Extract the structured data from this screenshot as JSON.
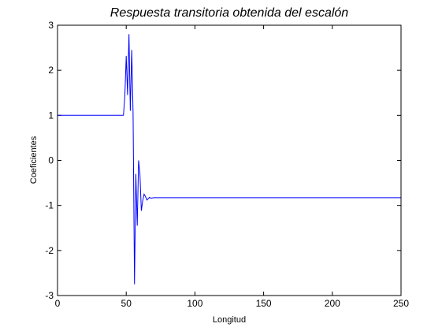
{
  "chart_data": {
    "type": "line",
    "title": "Respuesta transitoria obtenida del escalón",
    "xlabel": "Longitud",
    "ylabel": "Coeficientes",
    "xlim": [
      0,
      250
    ],
    "ylim": [
      -3,
      3
    ],
    "xticks": [
      0,
      50,
      100,
      150,
      200,
      250
    ],
    "yticks": [
      -3,
      -2,
      -1,
      0,
      1,
      2,
      3
    ],
    "grid": false,
    "line_color": "#0000ff",
    "series": [
      {
        "x": [
          0,
          48,
          49,
          50,
          51,
          52,
          53,
          54,
          55,
          56,
          57,
          58,
          59,
          60,
          61,
          62,
          63,
          64,
          65,
          66,
          67,
          68,
          70,
          250
        ],
        "y": [
          1.0,
          1.0,
          1.45,
          2.32,
          1.45,
          2.8,
          1.1,
          2.45,
          1.05,
          -2.75,
          -0.3,
          -1.45,
          0.0,
          -0.3,
          -1.12,
          -0.9,
          -0.75,
          -0.8,
          -0.88,
          -0.85,
          -0.82,
          -0.84,
          -0.83,
          -0.83
        ]
      }
    ]
  }
}
